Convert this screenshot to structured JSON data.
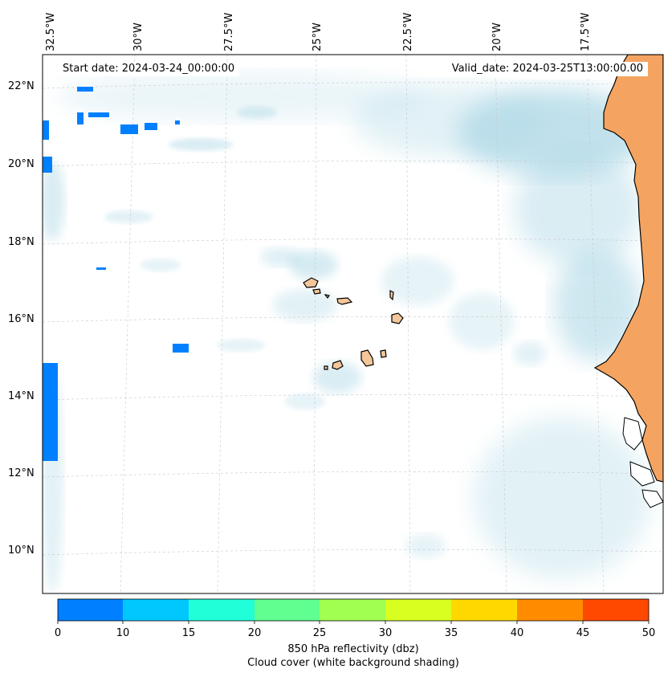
{
  "map": {
    "region": "Cape Verde and West African coast",
    "projection_grid": "dashed graticule",
    "lat_labels": [
      "22°N",
      "20°N",
      "18°N",
      "16°N",
      "14°N",
      "12°N",
      "10°N"
    ],
    "lon_labels": [
      "32.5°W",
      "30°W",
      "27.5°W",
      "25°W",
      "22.5°W",
      "20°W",
      "17.5°W"
    ],
    "land_color": "#f4a460",
    "cloud_color": "#add8e6",
    "reflectivity_color": "#0080ff"
  },
  "annotations": {
    "start_date": "Start date: 2024-03-24_00:00:00",
    "valid_date": "Valid_date: 2024-03-25T13:00:00.00"
  },
  "colorbar": {
    "ticks": [
      "0",
      "10",
      "15",
      "20",
      "25",
      "30",
      "35",
      "40",
      "45",
      "50"
    ],
    "colors": [
      "#0080ff",
      "#00c8ff",
      "#20ffd8",
      "#60ff90",
      "#a0ff50",
      "#d8ff20",
      "#ffd800",
      "#ff8c00",
      "#ff4800"
    ],
    "label_line1": "850 hPa reflectivity (dbz)",
    "label_line2": "Cloud cover (white background shading)"
  }
}
